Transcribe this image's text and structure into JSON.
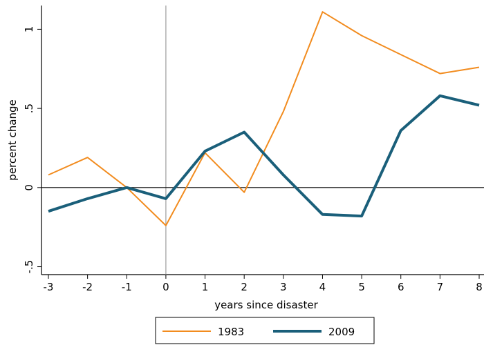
{
  "chart_data": {
    "type": "line",
    "xlabel": "years since disaster",
    "ylabel": "percent change",
    "x": [
      -3,
      -2,
      -1,
      0,
      1,
      2,
      3,
      4,
      5,
      6,
      7,
      8
    ],
    "xlim": [
      -3,
      8
    ],
    "ylim": [
      -0.55,
      1.15
    ],
    "xticks": [
      {
        "value": -3,
        "label": "-3"
      },
      {
        "value": -2,
        "label": "-2"
      },
      {
        "value": -1,
        "label": "-1"
      },
      {
        "value": 0,
        "label": "0"
      },
      {
        "value": 1,
        "label": "1"
      },
      {
        "value": 2,
        "label": "2"
      },
      {
        "value": 3,
        "label": "3"
      },
      {
        "value": 4,
        "label": "4"
      },
      {
        "value": 5,
        "label": "5"
      },
      {
        "value": 6,
        "label": "6"
      },
      {
        "value": 7,
        "label": "7"
      },
      {
        "value": 8,
        "label": "8"
      }
    ],
    "yticks": [
      {
        "value": -0.5,
        "label": "-.5"
      },
      {
        "value": 0,
        "label": "0"
      },
      {
        "value": 0.5,
        "label": ".5"
      },
      {
        "value": 1,
        "label": "1"
      }
    ],
    "grid": false,
    "reference_lines": {
      "horizontal_at": 0,
      "vertical_at": 0
    },
    "legend_position": "bottom",
    "series": [
      {
        "name": "1983",
        "color": "#f28c1f",
        "values": [
          0.08,
          0.19,
          0.0,
          -0.24,
          0.22,
          -0.03,
          0.48,
          1.11,
          0.96,
          0.84,
          0.72,
          0.76
        ]
      },
      {
        "name": "2009",
        "color": "#1a5f7a",
        "values": [
          -0.15,
          -0.07,
          0.0,
          -0.07,
          0.23,
          0.35,
          0.08,
          -0.17,
          -0.18,
          0.36,
          0.58,
          0.52
        ]
      }
    ]
  }
}
